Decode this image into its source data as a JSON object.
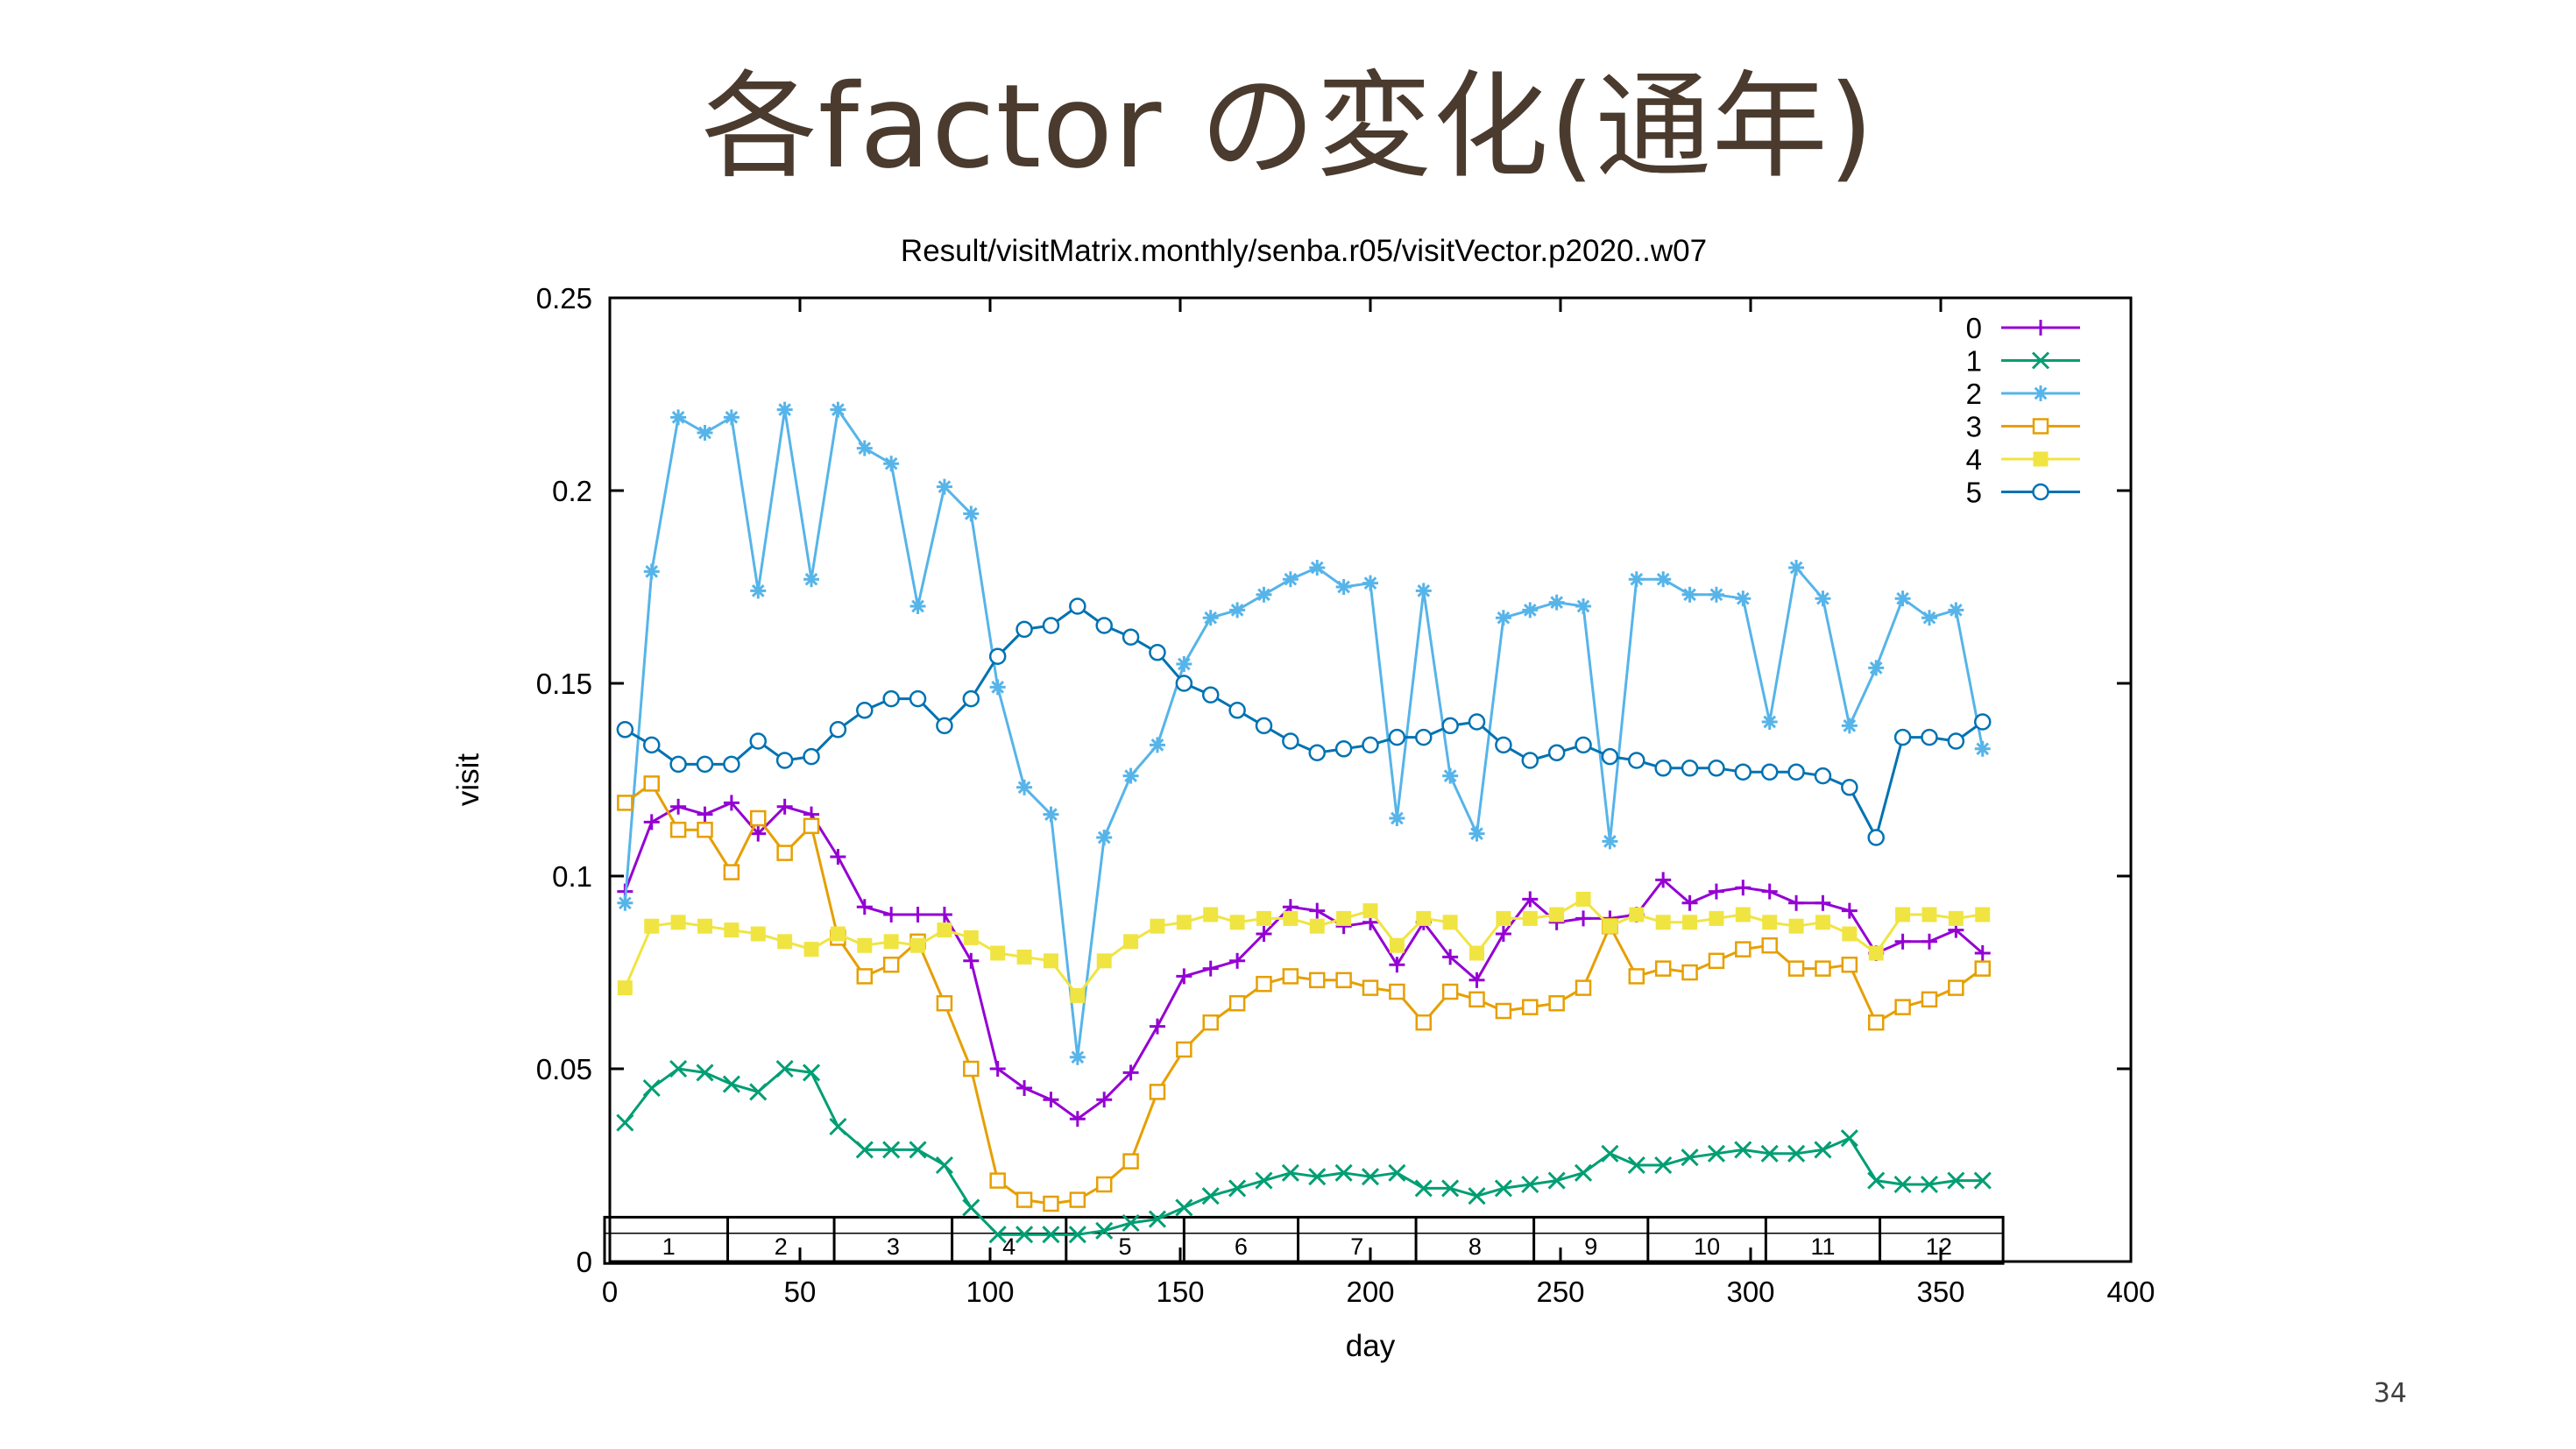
{
  "slide": {
    "title": "各factor の変化(通年)",
    "page_number": "34"
  },
  "chart_data": {
    "type": "line",
    "title": "Result/visitMatrix.monthly/senba.r05/visitVector.p2020..w07",
    "xlabel": "day",
    "ylabel": "visit",
    "xlim": [
      0,
      400
    ],
    "ylim": [
      0,
      0.25
    ],
    "x_ticks": [
      0,
      50,
      100,
      150,
      200,
      250,
      300,
      350,
      400
    ],
    "y_ticks": [
      0,
      0.05,
      0.1,
      0.15,
      0.2,
      0.25
    ],
    "grid": false,
    "legend_position": "top-right",
    "months": {
      "labels": [
        "1",
        "2",
        "3",
        "4",
        "5",
        "6",
        "7",
        "8",
        "9",
        "10",
        "11",
        "12"
      ],
      "boundaries": [
        0,
        31,
        59,
        90,
        120,
        151,
        181,
        212,
        243,
        273,
        304,
        334,
        365
      ]
    },
    "x": [
      4,
      11,
      18,
      25,
      32,
      39,
      46,
      53,
      60,
      67,
      74,
      81,
      88,
      95,
      102,
      109,
      116,
      123,
      130,
      137,
      144,
      151,
      158,
      165,
      172,
      179,
      186,
      193,
      200,
      207,
      214,
      221,
      228,
      235,
      242,
      249,
      256,
      263,
      270,
      277,
      284,
      291,
      298,
      305,
      312,
      319,
      326,
      333,
      340,
      347,
      354,
      361
    ],
    "series": [
      {
        "name": "0",
        "color": "#9400d3",
        "marker": "plus",
        "values": [
          0.096,
          0.114,
          0.118,
          0.116,
          0.119,
          0.111,
          0.118,
          0.116,
          0.105,
          0.092,
          0.09,
          0.09,
          0.09,
          0.078,
          0.05,
          0.045,
          0.042,
          0.037,
          0.042,
          0.049,
          0.061,
          0.074,
          0.076,
          0.078,
          0.085,
          0.092,
          0.091,
          0.087,
          0.088,
          0.077,
          0.088,
          0.079,
          0.073,
          0.085,
          0.094,
          0.088,
          0.089,
          0.089,
          0.09,
          0.099,
          0.093,
          0.096,
          0.097,
          0.096,
          0.093,
          0.093,
          0.091,
          0.08,
          0.083,
          0.083,
          0.086,
          0.08
        ]
      },
      {
        "name": "1",
        "color": "#009e73",
        "marker": "x",
        "values": [
          0.036,
          0.045,
          0.05,
          0.049,
          0.046,
          0.044,
          0.05,
          0.049,
          0.035,
          0.029,
          0.029,
          0.029,
          0.025,
          0.014,
          0.007,
          0.007,
          0.007,
          0.007,
          0.008,
          0.01,
          0.011,
          0.014,
          0.017,
          0.019,
          0.021,
          0.023,
          0.022,
          0.023,
          0.022,
          0.023,
          0.019,
          0.019,
          0.017,
          0.019,
          0.02,
          0.021,
          0.023,
          0.028,
          0.025,
          0.025,
          0.027,
          0.028,
          0.029,
          0.028,
          0.028,
          0.029,
          0.032,
          0.021,
          0.02,
          0.02,
          0.021,
          0.021
        ]
      },
      {
        "name": "2",
        "color": "#56b4e9",
        "marker": "star",
        "values": [
          0.093,
          0.179,
          0.219,
          0.215,
          0.219,
          0.174,
          0.221,
          0.177,
          0.221,
          0.211,
          0.207,
          0.17,
          0.201,
          0.194,
          0.149,
          0.123,
          0.116,
          0.053,
          0.11,
          0.126,
          0.134,
          0.155,
          0.167,
          0.169,
          0.173,
          0.177,
          0.18,
          0.175,
          0.176,
          0.115,
          0.174,
          0.126,
          0.111,
          0.167,
          0.169,
          0.171,
          0.17,
          0.109,
          0.177,
          0.177,
          0.173,
          0.173,
          0.172,
          0.14,
          0.18,
          0.172,
          0.139,
          0.154,
          0.172,
          0.167,
          0.169,
          0.133
        ]
      },
      {
        "name": "3",
        "color": "#e69f00",
        "marker": "open-square",
        "values": [
          0.119,
          0.124,
          0.112,
          0.112,
          0.101,
          0.115,
          0.106,
          0.113,
          0.084,
          0.074,
          0.077,
          0.083,
          0.067,
          0.05,
          0.021,
          0.016,
          0.015,
          0.016,
          0.02,
          0.026,
          0.044,
          0.055,
          0.062,
          0.067,
          0.072,
          0.074,
          0.073,
          0.073,
          0.071,
          0.07,
          0.062,
          0.07,
          0.068,
          0.065,
          0.066,
          0.067,
          0.071,
          0.087,
          0.074,
          0.076,
          0.075,
          0.078,
          0.081,
          0.082,
          0.076,
          0.076,
          0.077,
          0.062,
          0.066,
          0.068,
          0.071,
          0.076
        ]
      },
      {
        "name": "4",
        "color": "#f0e442",
        "marker": "filled-square",
        "values": [
          0.071,
          0.087,
          0.088,
          0.087,
          0.086,
          0.085,
          0.083,
          0.081,
          0.085,
          0.082,
          0.083,
          0.082,
          0.086,
          0.084,
          0.08,
          0.079,
          0.078,
          0.069,
          0.078,
          0.083,
          0.087,
          0.088,
          0.09,
          0.088,
          0.089,
          0.089,
          0.087,
          0.089,
          0.091,
          0.082,
          0.089,
          0.088,
          0.08,
          0.089,
          0.089,
          0.09,
          0.094,
          0.087,
          0.09,
          0.088,
          0.088,
          0.089,
          0.09,
          0.088,
          0.087,
          0.088,
          0.085,
          0.08,
          0.09,
          0.09,
          0.089,
          0.09
        ]
      },
      {
        "name": "5",
        "color": "#0072b2",
        "marker": "open-circle",
        "values": [
          0.138,
          0.134,
          0.129,
          0.129,
          0.129,
          0.135,
          0.13,
          0.131,
          0.138,
          0.143,
          0.146,
          0.146,
          0.139,
          0.146,
          0.157,
          0.164,
          0.165,
          0.17,
          0.165,
          0.162,
          0.158,
          0.15,
          0.147,
          0.143,
          0.139,
          0.135,
          0.132,
          0.133,
          0.134,
          0.136,
          0.136,
          0.139,
          0.14,
          0.134,
          0.13,
          0.132,
          0.134,
          0.131,
          0.13,
          0.128,
          0.128,
          0.128,
          0.127,
          0.127,
          0.127,
          0.126,
          0.123,
          0.11,
          0.136,
          0.136,
          0.135,
          0.14
        ]
      }
    ]
  }
}
